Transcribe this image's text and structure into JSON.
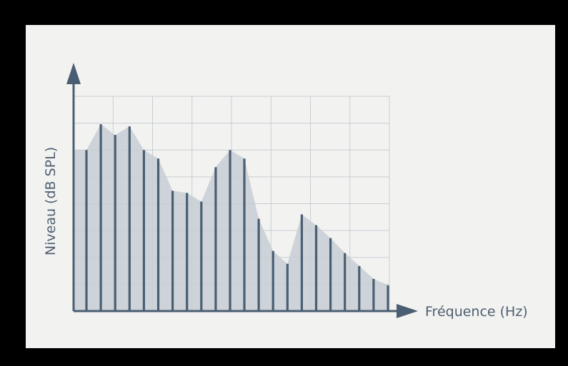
{
  "colors": {
    "background": "#f2f2f1",
    "frame": "#000000",
    "grid": "#c9cdd1",
    "envelope_fill": "#c7ced4",
    "bars": "#4a5e73",
    "axes": "#4a5e73",
    "text": "#4f6070"
  },
  "chart_data": {
    "type": "bar",
    "xlabel": "Fréquence (Hz)",
    "ylabel": "Niveau (dB SPL)",
    "grid": true,
    "x_ticks_shown": false,
    "y_ticks_shown": false,
    "ylim": [
      0,
      10
    ],
    "envelope": "filled area connecting bar tops",
    "values": [
      7.5,
      8.7,
      8.2,
      8.6,
      7.5,
      7.1,
      5.6,
      5.5,
      5.1,
      6.7,
      7.5,
      7.1,
      4.3,
      2.8,
      2.2,
      4.5,
      4.0,
      3.4,
      2.7,
      2.1,
      1.5,
      1.2
    ]
  }
}
